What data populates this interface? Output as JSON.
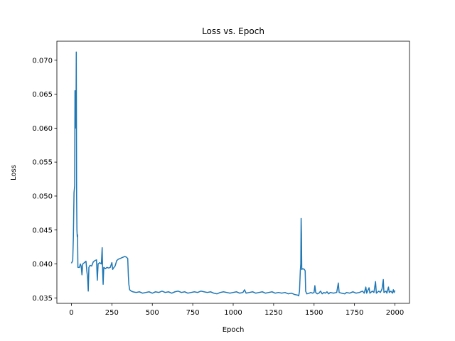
{
  "chart_data": {
    "type": "line",
    "title": "Loss vs. Epoch",
    "xlabel": "Epoch",
    "ylabel": "Loss",
    "xlim": [
      -90,
      2090
    ],
    "ylim": [
      0.0342,
      0.0728
    ],
    "xticks": [
      0,
      250,
      500,
      750,
      1000,
      1250,
      1500,
      1750,
      2000
    ],
    "xtick_labels": [
      "0",
      "250",
      "500",
      "750",
      "1000",
      "1250",
      "1500",
      "1750",
      "2000"
    ],
    "yticks": [
      0.035,
      0.04,
      0.045,
      0.05,
      0.055,
      0.06,
      0.065,
      0.07
    ],
    "ytick_labels": [
      "0.035",
      "0.040",
      "0.045",
      "0.050",
      "0.055",
      "0.060",
      "0.065",
      "0.070"
    ],
    "grid": false,
    "series": [
      {
        "color": "#1f77b4",
        "points": [
          [
            0,
            0.0401
          ],
          [
            8,
            0.0405
          ],
          [
            12,
            0.044
          ],
          [
            16,
            0.0505
          ],
          [
            20,
            0.0515
          ],
          [
            22,
            0.0655
          ],
          [
            24,
            0.062
          ],
          [
            26,
            0.0655
          ],
          [
            28,
            0.06
          ],
          [
            30,
            0.0712
          ],
          [
            32,
            0.05
          ],
          [
            34,
            0.045
          ],
          [
            36,
            0.044
          ],
          [
            38,
            0.0443
          ],
          [
            40,
            0.0395
          ],
          [
            50,
            0.0395
          ],
          [
            55,
            0.04
          ],
          [
            60,
            0.0397
          ],
          [
            65,
            0.0384
          ],
          [
            70,
            0.04
          ],
          [
            80,
            0.0402
          ],
          [
            90,
            0.0404
          ],
          [
            95,
            0.039
          ],
          [
            100,
            0.038
          ],
          [
            104,
            0.036
          ],
          [
            108,
            0.0395
          ],
          [
            115,
            0.0398
          ],
          [
            125,
            0.0397
          ],
          [
            135,
            0.0403
          ],
          [
            145,
            0.0405
          ],
          [
            155,
            0.0406
          ],
          [
            160,
            0.0376
          ],
          [
            165,
            0.04
          ],
          [
            175,
            0.0402
          ],
          [
            185,
            0.04
          ],
          [
            190,
            0.0424
          ],
          [
            193,
            0.039
          ],
          [
            196,
            0.037
          ],
          [
            200,
            0.0395
          ],
          [
            210,
            0.0393
          ],
          [
            220,
            0.0395
          ],
          [
            230,
            0.0394
          ],
          [
            240,
            0.0395
          ],
          [
            250,
            0.0402
          ],
          [
            255,
            0.0392
          ],
          [
            260,
            0.0394
          ],
          [
            270,
            0.0397
          ],
          [
            280,
            0.0405
          ],
          [
            290,
            0.0407
          ],
          [
            300,
            0.0408
          ],
          [
            310,
            0.0409
          ],
          [
            320,
            0.041
          ],
          [
            330,
            0.0411
          ],
          [
            340,
            0.041
          ],
          [
            348,
            0.0408
          ],
          [
            352,
            0.0382
          ],
          [
            355,
            0.037
          ],
          [
            360,
            0.0362
          ],
          [
            370,
            0.036
          ],
          [
            380,
            0.0359
          ],
          [
            400,
            0.0358
          ],
          [
            420,
            0.0359
          ],
          [
            440,
            0.0357
          ],
          [
            460,
            0.0358
          ],
          [
            480,
            0.0359
          ],
          [
            500,
            0.0357
          ],
          [
            520,
            0.0359
          ],
          [
            540,
            0.0358
          ],
          [
            560,
            0.036
          ],
          [
            580,
            0.0358
          ],
          [
            600,
            0.0359
          ],
          [
            620,
            0.0357
          ],
          [
            640,
            0.0359
          ],
          [
            660,
            0.036
          ],
          [
            680,
            0.0358
          ],
          [
            700,
            0.0359
          ],
          [
            720,
            0.0357
          ],
          [
            740,
            0.0358
          ],
          [
            760,
            0.0359
          ],
          [
            780,
            0.0358
          ],
          [
            800,
            0.036
          ],
          [
            820,
            0.0359
          ],
          [
            840,
            0.0358
          ],
          [
            860,
            0.0359
          ],
          [
            880,
            0.0357
          ],
          [
            900,
            0.0356
          ],
          [
            920,
            0.0358
          ],
          [
            940,
            0.0359
          ],
          [
            960,
            0.0358
          ],
          [
            980,
            0.0357
          ],
          [
            1000,
            0.0358
          ],
          [
            1020,
            0.0359
          ],
          [
            1040,
            0.0357
          ],
          [
            1060,
            0.0358
          ],
          [
            1070,
            0.0362
          ],
          [
            1080,
            0.0357
          ],
          [
            1100,
            0.0358
          ],
          [
            1120,
            0.0359
          ],
          [
            1140,
            0.0357
          ],
          [
            1160,
            0.0358
          ],
          [
            1180,
            0.0359
          ],
          [
            1200,
            0.0357
          ],
          [
            1220,
            0.0358
          ],
          [
            1240,
            0.0359
          ],
          [
            1260,
            0.0357
          ],
          [
            1280,
            0.0358
          ],
          [
            1300,
            0.0357
          ],
          [
            1320,
            0.0358
          ],
          [
            1340,
            0.0356
          ],
          [
            1360,
            0.0357
          ],
          [
            1380,
            0.0355
          ],
          [
            1400,
            0.0354
          ],
          [
            1405,
            0.0353
          ],
          [
            1410,
            0.036
          ],
          [
            1415,
            0.039
          ],
          [
            1418,
            0.04
          ],
          [
            1420,
            0.0467
          ],
          [
            1422,
            0.0445
          ],
          [
            1424,
            0.0392
          ],
          [
            1430,
            0.0393
          ],
          [
            1440,
            0.0392
          ],
          [
            1445,
            0.039
          ],
          [
            1448,
            0.036
          ],
          [
            1455,
            0.0356
          ],
          [
            1470,
            0.0357
          ],
          [
            1480,
            0.0358
          ],
          [
            1490,
            0.0357
          ],
          [
            1500,
            0.0358
          ],
          [
            1505,
            0.0368
          ],
          [
            1510,
            0.0358
          ],
          [
            1520,
            0.0356
          ],
          [
            1530,
            0.0357
          ],
          [
            1540,
            0.036
          ],
          [
            1550,
            0.0356
          ],
          [
            1560,
            0.0358
          ],
          [
            1570,
            0.0357
          ],
          [
            1580,
            0.0359
          ],
          [
            1590,
            0.0356
          ],
          [
            1600,
            0.0358
          ],
          [
            1620,
            0.0357
          ],
          [
            1640,
            0.0358
          ],
          [
            1650,
            0.0372
          ],
          [
            1655,
            0.0358
          ],
          [
            1670,
            0.0357
          ],
          [
            1690,
            0.0356
          ],
          [
            1700,
            0.0358
          ],
          [
            1720,
            0.0357
          ],
          [
            1740,
            0.0359
          ],
          [
            1760,
            0.0357
          ],
          [
            1780,
            0.0358
          ],
          [
            1800,
            0.036
          ],
          [
            1810,
            0.0357
          ],
          [
            1820,
            0.0366
          ],
          [
            1825,
            0.0357
          ],
          [
            1840,
            0.0365
          ],
          [
            1845,
            0.0357
          ],
          [
            1860,
            0.036
          ],
          [
            1870,
            0.0358
          ],
          [
            1880,
            0.0374
          ],
          [
            1885,
            0.0357
          ],
          [
            1900,
            0.036
          ],
          [
            1910,
            0.0358
          ],
          [
            1920,
            0.0363
          ],
          [
            1928,
            0.0377
          ],
          [
            1932,
            0.0358
          ],
          [
            1945,
            0.036
          ],
          [
            1950,
            0.0357
          ],
          [
            1960,
            0.0366
          ],
          [
            1965,
            0.0358
          ],
          [
            1975,
            0.036
          ],
          [
            1985,
            0.0357
          ],
          [
            1990,
            0.0362
          ],
          [
            1995,
            0.0358
          ],
          [
            2000,
            0.0361
          ]
        ]
      }
    ]
  }
}
